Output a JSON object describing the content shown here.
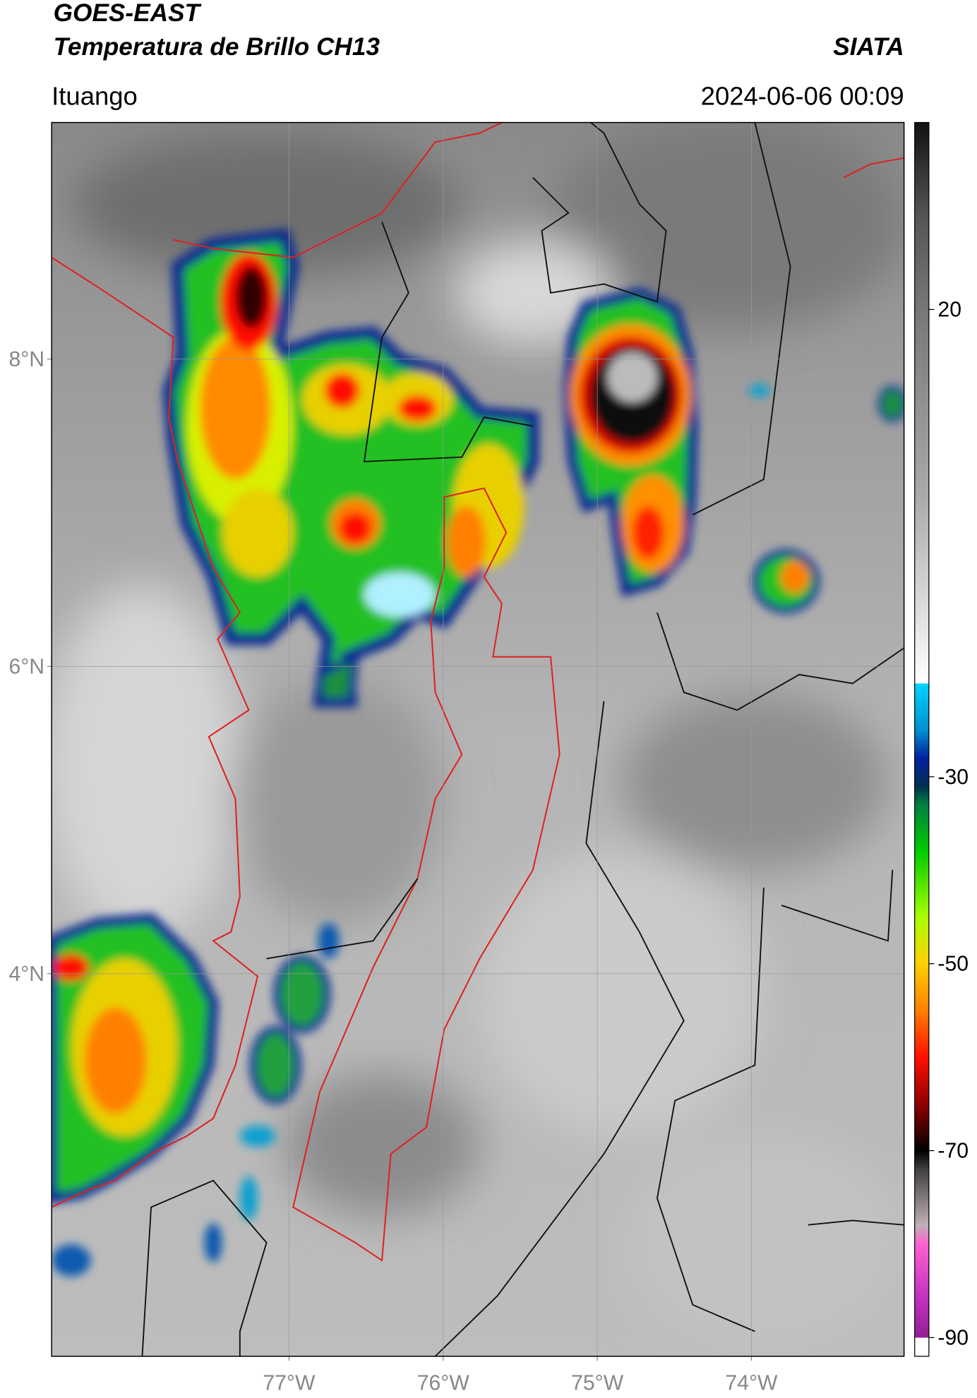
{
  "header": {
    "title": "GOES-EAST",
    "subtitle": "Temperatura de Brillo CH13",
    "brand": "SIATA",
    "location": "Ituango",
    "datetime": "2024-06-06 00:09"
  },
  "map": {
    "xlim": [
      -78.54,
      -73.01
    ],
    "ylim": [
      1.51,
      9.54
    ],
    "xticks": [
      {
        "value": -77,
        "label": "77°W"
      },
      {
        "value": -76,
        "label": "76°W"
      },
      {
        "value": -75,
        "label": "75°W"
      },
      {
        "value": -74,
        "label": "74°W"
      }
    ],
    "yticks": [
      {
        "value": 8,
        "label": "8°N"
      },
      {
        "value": 6,
        "label": "6°N"
      },
      {
        "value": 4,
        "label": "4°N"
      }
    ],
    "grid": true
  },
  "colorbar": {
    "clim": [
      -92,
      40
    ],
    "ticks": [
      20,
      -30,
      -50,
      -70,
      -90
    ],
    "stops": [
      {
        "value": 40,
        "color": "#111111"
      },
      {
        "value": 30,
        "color": "#555555"
      },
      {
        "value": 20,
        "color": "#777777"
      },
      {
        "value": 0,
        "color": "#aaaaaa"
      },
      {
        "value": -20,
        "color": "#ffffff"
      },
      {
        "value": -20,
        "color": "#00d5ff"
      },
      {
        "value": -25,
        "color": "#0090d0"
      },
      {
        "value": -28,
        "color": "#0020a0"
      },
      {
        "value": -31,
        "color": "#003050"
      },
      {
        "value": -33,
        "color": "#008040"
      },
      {
        "value": -38,
        "color": "#00cc00"
      },
      {
        "value": -45,
        "color": "#aaff00"
      },
      {
        "value": -50,
        "color": "#ffd000"
      },
      {
        "value": -55,
        "color": "#ff8000"
      },
      {
        "value": -60,
        "color": "#ff1000"
      },
      {
        "value": -65,
        "color": "#900000"
      },
      {
        "value": -70,
        "color": "#000000"
      },
      {
        "value": -72,
        "color": "#404040"
      },
      {
        "value": -78,
        "color": "#c0b0b8"
      },
      {
        "value": -80,
        "color": "#ff60d0"
      },
      {
        "value": -86,
        "color": "#c030c0"
      },
      {
        "value": -90,
        "color": "#902090"
      },
      {
        "value": -90,
        "color": "#ffffff"
      },
      {
        "value": -92,
        "color": "#ffffff"
      }
    ]
  }
}
